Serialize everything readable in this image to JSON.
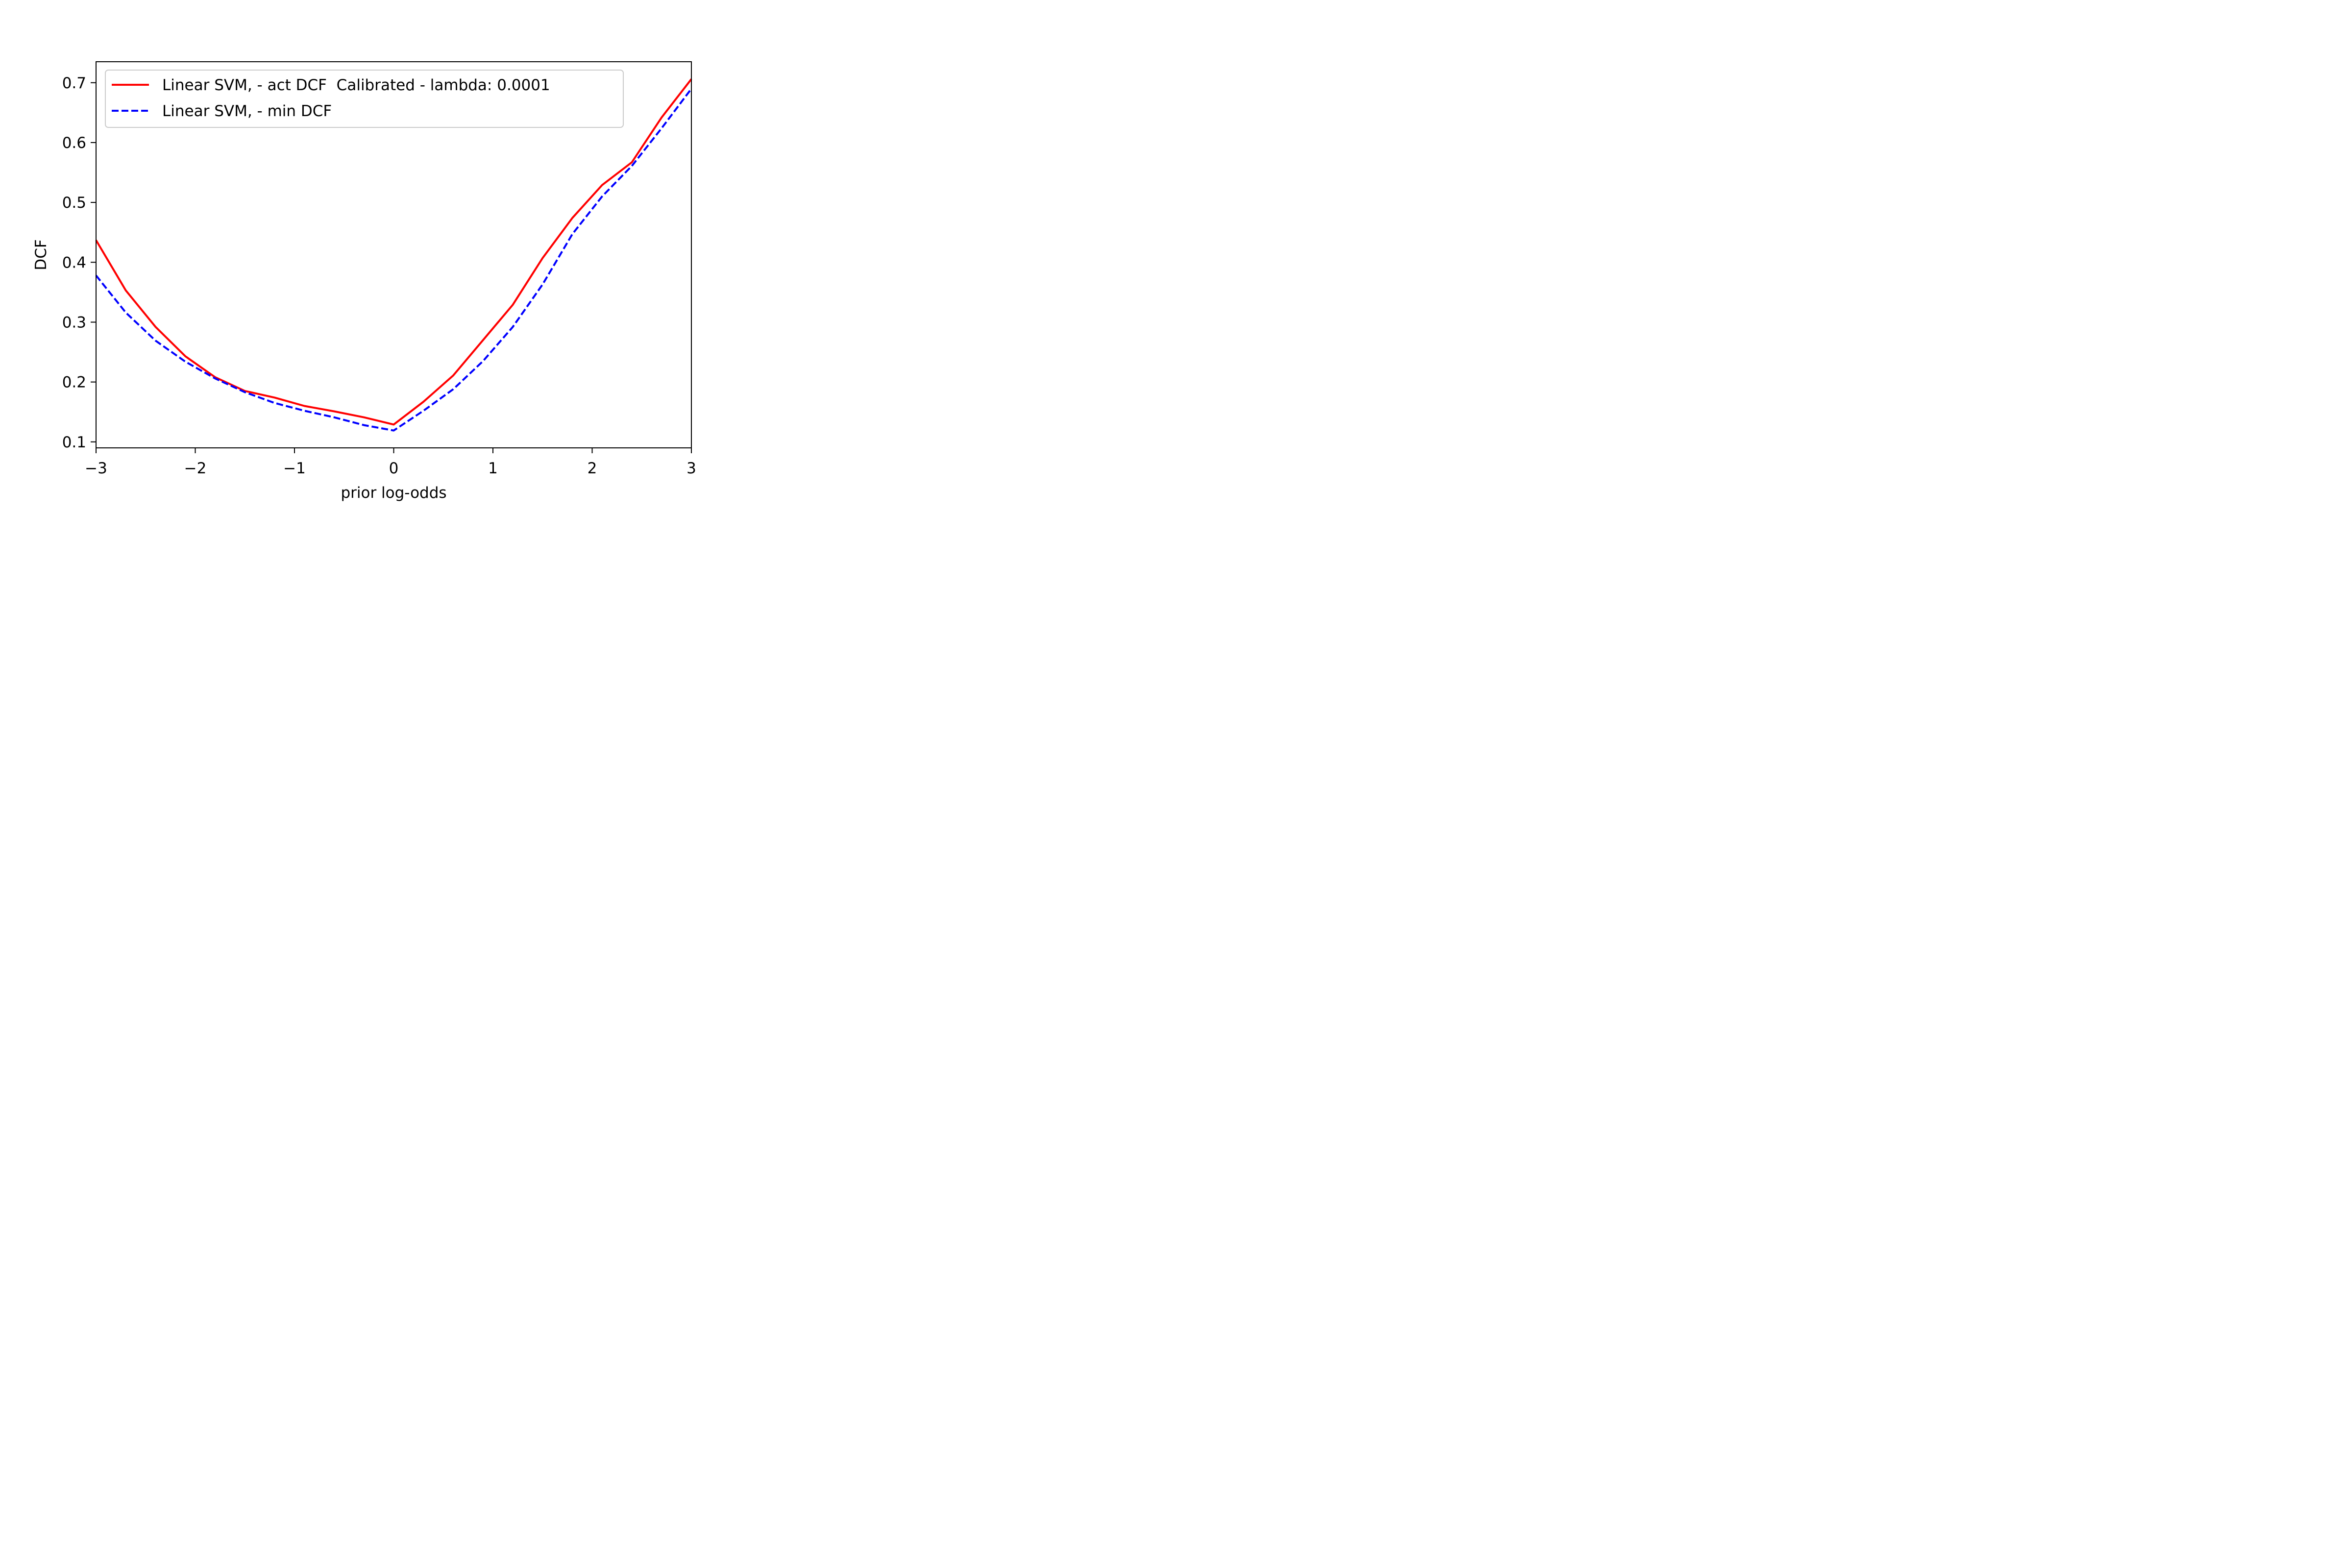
{
  "chart_data": {
    "type": "line",
    "title": "",
    "xlabel": "prior log-odds",
    "ylabel": "DCF",
    "xlim": [
      -3,
      3
    ],
    "ylim": [
      0.09,
      0.735
    ],
    "xticks": [
      {
        "value": -3,
        "label": "−3"
      },
      {
        "value": -2,
        "label": "−2"
      },
      {
        "value": -1,
        "label": "−1"
      },
      {
        "value": 0,
        "label": "0"
      },
      {
        "value": 1,
        "label": "1"
      },
      {
        "value": 2,
        "label": "2"
      },
      {
        "value": 3,
        "label": "3"
      }
    ],
    "yticks": [
      {
        "value": 0.1,
        "label": "0.1"
      },
      {
        "value": 0.2,
        "label": "0.2"
      },
      {
        "value": 0.3,
        "label": "0.3"
      },
      {
        "value": 0.4,
        "label": "0.4"
      },
      {
        "value": 0.5,
        "label": "0.5"
      },
      {
        "value": 0.6,
        "label": "0.6"
      },
      {
        "value": 0.7,
        "label": "0.7"
      }
    ],
    "grid": false,
    "legend_position": "top-left",
    "x": [
      -3.0,
      -2.7,
      -2.4,
      -2.1,
      -1.8,
      -1.5,
      -1.2,
      -0.9,
      -0.6,
      -0.3,
      0.0,
      0.3,
      0.6,
      0.9,
      1.2,
      1.5,
      1.8,
      2.1,
      2.4,
      2.7,
      3.0
    ],
    "series": [
      {
        "name": "Linear SVM, - act DCF  Calibrated - lambda: 0.0001",
        "color": "#ff0000",
        "dash": "solid",
        "values": [
          0.437,
          0.353,
          0.292,
          0.243,
          0.208,
          0.185,
          0.174,
          0.16,
          0.151,
          0.141,
          0.129,
          0.167,
          0.211,
          0.27,
          0.329,
          0.407,
          0.474,
          0.529,
          0.567,
          0.642,
          0.706
        ]
      },
      {
        "name": "Linear SVM, - min DCF",
        "color": "#0000ff",
        "dash": "dashed",
        "values": [
          0.378,
          0.316,
          0.269,
          0.234,
          0.206,
          0.183,
          0.165,
          0.152,
          0.141,
          0.128,
          0.119,
          0.152,
          0.188,
          0.235,
          0.292,
          0.363,
          0.447,
          0.51,
          0.561,
          0.624,
          0.69
        ]
      }
    ]
  }
}
